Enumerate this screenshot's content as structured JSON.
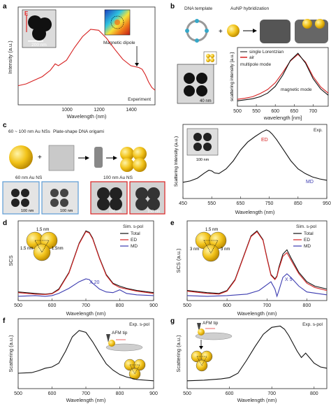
{
  "panels": {
    "a": {
      "letter": "a",
      "xlabel": "Wavelength (nm)",
      "ylabel": "Intensity (a.u.)",
      "xticks": [
        "1000",
        "1200",
        "1400"
      ],
      "inset_scale": "200 nm",
      "inset_field": "E",
      "magnetic_dipole": "Magnetic dipole",
      "experiment": "Experiment"
    },
    "b": {
      "letter": "b",
      "dna_template": "DNA template",
      "aunp_hybridization": "AuNP hybridization",
      "plus": "+",
      "scale": "40 nm",
      "legend": [
        "single Lorentzian",
        "air"
      ],
      "multipole": "multipole mode",
      "magnetic": "magnetic mode",
      "xlabel": "wavelength [nm]",
      "ylabel": "scattering intensity [a.u.]",
      "xticks": [
        "500",
        "550",
        "600",
        "650",
        "700"
      ]
    },
    "c": {
      "letter": "c",
      "ns_text": "60 ~ 100 nm Au NSs",
      "origami_text": "Plate-shape DNA origami",
      "plus": "+",
      "tem60": "60 nm Au NS",
      "tem100": "100 nm Au NS",
      "scales": [
        "100 nm",
        "100 nm",
        "100 nm",
        "100 nm",
        "100 nm"
      ],
      "exp": "Exp.",
      "ed": "ED",
      "md": "MD",
      "xlabel": "Wavelength (nm)",
      "ylabel": "Scattering Intensity (a.u.)",
      "xticks": [
        "450",
        "550",
        "650",
        "750",
        "850",
        "950"
      ]
    },
    "d": {
      "letter": "d",
      "gap_labels": [
        "1.5 nm",
        "1.5 nm",
        "1.5nm"
      ],
      "legend_title": "Sim. s-pol",
      "legend": [
        "Total",
        "ED",
        "MD"
      ],
      "factor": "X 20",
      "xlabel": "Wavelength (nm)",
      "ylabel": "SCS",
      "xticks": [
        "500",
        "600",
        "700",
        "800",
        "900"
      ]
    },
    "e": {
      "letter": "e",
      "gap_labels": [
        "1.5 nm",
        "3 nm",
        "3 nm"
      ],
      "legend_title": "Sim. s-pol",
      "legend": [
        "Total",
        "ED",
        "MD"
      ],
      "factor": "X 5",
      "xlabel": "Wavelength (nm)",
      "ylabel": "SCS (a.u.)",
      "xticks": [
        "500",
        "600",
        "700",
        "800"
      ]
    },
    "f": {
      "letter": "f",
      "exp": "Exp. s-pol",
      "afm": "AFM tip",
      "xlabel": "Wavelength (nm)",
      "ylabel": "Scattering (a.u.)",
      "xticks": [
        "500",
        "600",
        "700",
        "800",
        "900"
      ]
    },
    "g": {
      "letter": "g",
      "exp": "Exp. s-pol",
      "afm": "AFM tip",
      "xlabel": "Wavelength (nm)",
      "ylabel": "Scattering (a.u.)",
      "xticks": [
        "500",
        "600",
        "700",
        "800"
      ]
    }
  },
  "chart_data": [
    {
      "panel": "a",
      "type": "line",
      "xlim": [
        650,
        1500
      ],
      "series": [
        {
          "name": "Experiment",
          "color": "#d62020",
          "x": [
            650,
            700,
            750,
            800,
            850,
            880,
            900,
            950,
            1000,
            1050,
            1100,
            1150,
            1200,
            1250,
            1300,
            1350,
            1400,
            1420,
            1440,
            1460,
            1480,
            1500
          ],
          "y": [
            0.18,
            0.2,
            0.24,
            0.28,
            0.35,
            0.42,
            0.4,
            0.46,
            0.6,
            0.72,
            0.8,
            0.79,
            0.7,
            0.58,
            0.47,
            0.4,
            0.38,
            0.36,
            0.3,
            0.22,
            0.16,
            0.13
          ]
        }
      ]
    },
    {
      "panel": "b",
      "type": "line",
      "xlim": [
        500,
        740
      ],
      "series": [
        {
          "name": "air",
          "color": "#d62020",
          "x": [
            500,
            520,
            540,
            560,
            580,
            600,
            620,
            640,
            660,
            680,
            700,
            720,
            740
          ],
          "y": [
            0.08,
            0.1,
            0.13,
            0.19,
            0.27,
            0.4,
            0.6,
            0.82,
            0.95,
            0.8,
            0.52,
            0.32,
            0.2
          ]
        },
        {
          "name": "single Lorentzian",
          "color": "#111111",
          "x": [
            500,
            520,
            540,
            560,
            580,
            600,
            620,
            640,
            660,
            680,
            700,
            720,
            740
          ],
          "y": [
            0.05,
            0.07,
            0.09,
            0.13,
            0.2,
            0.33,
            0.55,
            0.83,
            0.97,
            0.78,
            0.48,
            0.28,
            0.16
          ]
        }
      ]
    },
    {
      "panel": "c",
      "type": "line",
      "xlim": [
        450,
        950
      ],
      "series": [
        {
          "name": "Exp.",
          "color": "#111111",
          "x": [
            450,
            475,
            500,
            525,
            540,
            550,
            560,
            575,
            600,
            625,
            650,
            675,
            700,
            725,
            740,
            750,
            760,
            775,
            800,
            825,
            850,
            875,
            900,
            925,
            950
          ],
          "y": [
            0.2,
            0.22,
            0.26,
            0.34,
            0.38,
            0.37,
            0.34,
            0.33,
            0.4,
            0.52,
            0.68,
            0.8,
            0.88,
            0.95,
            0.98,
            0.96,
            0.92,
            0.84,
            0.68,
            0.52,
            0.4,
            0.33,
            0.28,
            0.25,
            0.23
          ]
        }
      ]
    },
    {
      "panel": "d",
      "type": "line",
      "xlim": [
        500,
        900
      ],
      "series": [
        {
          "name": "Total",
          "color": "#111111",
          "x": [
            500,
            550,
            580,
            600,
            620,
            650,
            680,
            700,
            710,
            720,
            740,
            760,
            780,
            800,
            820,
            850,
            900
          ],
          "y": [
            0.08,
            0.06,
            0.05,
            0.06,
            0.12,
            0.35,
            0.75,
            0.92,
            0.9,
            0.82,
            0.55,
            0.32,
            0.2,
            0.16,
            0.13,
            0.1,
            0.07
          ]
        },
        {
          "name": "ED",
          "color": "#d62020",
          "x": [
            500,
            550,
            580,
            600,
            620,
            650,
            680,
            700,
            710,
            720,
            740,
            760,
            780,
            800,
            820,
            850,
            900
          ],
          "y": [
            0.07,
            0.05,
            0.045,
            0.055,
            0.11,
            0.34,
            0.74,
            0.91,
            0.89,
            0.81,
            0.54,
            0.31,
            0.19,
            0.14,
            0.12,
            0.09,
            0.06
          ]
        },
        {
          "name": "MD",
          "color": "#3b3bb0",
          "x": [
            500,
            550,
            580,
            600,
            620,
            650,
            680,
            700,
            710,
            720,
            740,
            760,
            780,
            800,
            820,
            850,
            900
          ],
          "y": [
            0.02,
            0.03,
            0.02,
            0.03,
            0.06,
            0.13,
            0.22,
            0.26,
            0.25,
            0.2,
            0.12,
            0.08,
            0.07,
            0.11,
            0.06,
            0.04,
            0.03
          ]
        }
      ]
    },
    {
      "panel": "e",
      "type": "line",
      "xlim": [
        500,
        850
      ],
      "series": [
        {
          "name": "Total",
          "color": "#111111",
          "x": [
            500,
            550,
            580,
            600,
            620,
            640,
            660,
            675,
            690,
            700,
            710,
            720,
            725,
            730,
            740,
            750,
            760,
            780,
            800,
            820,
            850
          ],
          "y": [
            0.1,
            0.07,
            0.06,
            0.1,
            0.25,
            0.55,
            0.85,
            0.92,
            0.8,
            0.55,
            0.32,
            0.26,
            0.3,
            0.42,
            0.6,
            0.66,
            0.55,
            0.35,
            0.22,
            0.16,
            0.12
          ]
        },
        {
          "name": "ED",
          "color": "#d62020",
          "x": [
            500,
            550,
            580,
            600,
            620,
            640,
            660,
            675,
            690,
            700,
            710,
            720,
            725,
            730,
            740,
            750,
            760,
            780,
            800,
            820,
            850
          ],
          "y": [
            0.09,
            0.06,
            0.05,
            0.09,
            0.24,
            0.54,
            0.84,
            0.91,
            0.79,
            0.54,
            0.31,
            0.25,
            0.29,
            0.4,
            0.57,
            0.62,
            0.52,
            0.33,
            0.2,
            0.14,
            0.1
          ]
        },
        {
          "name": "MD",
          "color": "#3b3bb0",
          "x": [
            500,
            550,
            600,
            650,
            680,
            700,
            710,
            720,
            725,
            730,
            740,
            750,
            760,
            780,
            800,
            850
          ],
          "y": [
            0.03,
            0.02,
            0.03,
            0.05,
            0.1,
            0.18,
            0.22,
            0.12,
            0.02,
            0.1,
            0.28,
            0.33,
            0.28,
            0.16,
            0.08,
            0.04
          ]
        }
      ]
    },
    {
      "panel": "f",
      "type": "line",
      "xlim": [
        500,
        900
      ],
      "series": [
        {
          "name": "Exp. s-pol",
          "color": "#111111",
          "x": [
            500,
            540,
            560,
            580,
            600,
            620,
            640,
            660,
            680,
            700,
            720,
            740,
            760,
            780,
            800,
            820,
            850,
            900
          ],
          "y": [
            0.2,
            0.21,
            0.24,
            0.28,
            0.3,
            0.36,
            0.55,
            0.78,
            0.88,
            0.85,
            0.7,
            0.52,
            0.35,
            0.25,
            0.18,
            0.14,
            0.1,
            0.08
          ]
        }
      ]
    },
    {
      "panel": "g",
      "type": "line",
      "xlim": [
        500,
        830
      ],
      "series": [
        {
          "name": "Exp. s-pol",
          "color": "#111111",
          "x": [
            500,
            540,
            580,
            600,
            620,
            640,
            660,
            680,
            700,
            720,
            730,
            740,
            760,
            770,
            780,
            790,
            800,
            815,
            830
          ],
          "y": [
            0.08,
            0.09,
            0.11,
            0.13,
            0.2,
            0.4,
            0.62,
            0.82,
            0.93,
            0.95,
            0.9,
            0.8,
            0.55,
            0.45,
            0.52,
            0.44,
            0.36,
            0.3,
            0.28
          ]
        }
      ]
    }
  ]
}
